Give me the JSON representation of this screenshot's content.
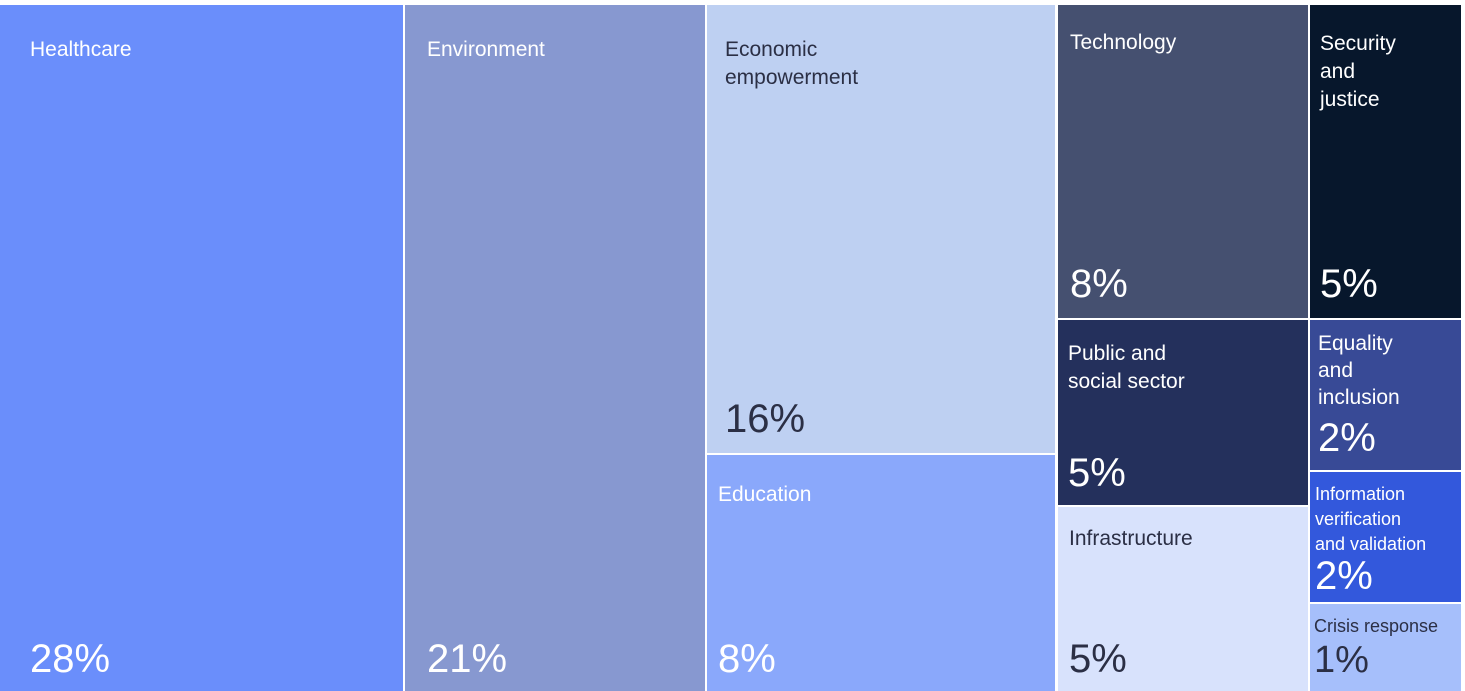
{
  "chart_data": {
    "type": "treemap",
    "title": "",
    "unit": "%",
    "items": [
      {
        "name": "Healthcare",
        "value": 28,
        "value_label": "28%",
        "color": "#6A8EFB",
        "text_color": "#FFFFFF"
      },
      {
        "name": "Environment",
        "value": 21,
        "value_label": "21%",
        "color": "#8798D0",
        "text_color": "#FFFFFF"
      },
      {
        "name": "Economic empowerment",
        "value": 16,
        "value_label": "16%",
        "color": "#BED0F2",
        "text_color": "#2B2F45"
      },
      {
        "name": "Education",
        "value": 8,
        "value_label": "8%",
        "color": "#8AA8FB",
        "text_color": "#FFFFFF"
      },
      {
        "name": "Technology",
        "value": 8,
        "value_label": "8%",
        "color": "#455070",
        "text_color": "#FFFFFF"
      },
      {
        "name": "Public and social sector",
        "value": 5,
        "value_label": "5%",
        "color": "#24305C",
        "text_color": "#FFFFFF"
      },
      {
        "name": "Infrastructure",
        "value": 5,
        "value_label": "5%",
        "color": "#D8E2FC",
        "text_color": "#2B2F45"
      },
      {
        "name": "Security and justice",
        "value": 5,
        "value_label": "5%",
        "color": "#07172C",
        "text_color": "#FFFFFF"
      },
      {
        "name": "Equality and inclusion",
        "value": 2,
        "value_label": "2%",
        "color": "#384A96",
        "text_color": "#FFFFFF"
      },
      {
        "name": "Information verification and validation",
        "value": 2,
        "value_label": "2%",
        "color": "#3358DC",
        "text_color": "#FFFFFF"
      },
      {
        "name": "Crisis response",
        "value": 1,
        "value_label": "1%",
        "color": "#A6BFFB",
        "text_color": "#2B2F45"
      }
    ]
  }
}
